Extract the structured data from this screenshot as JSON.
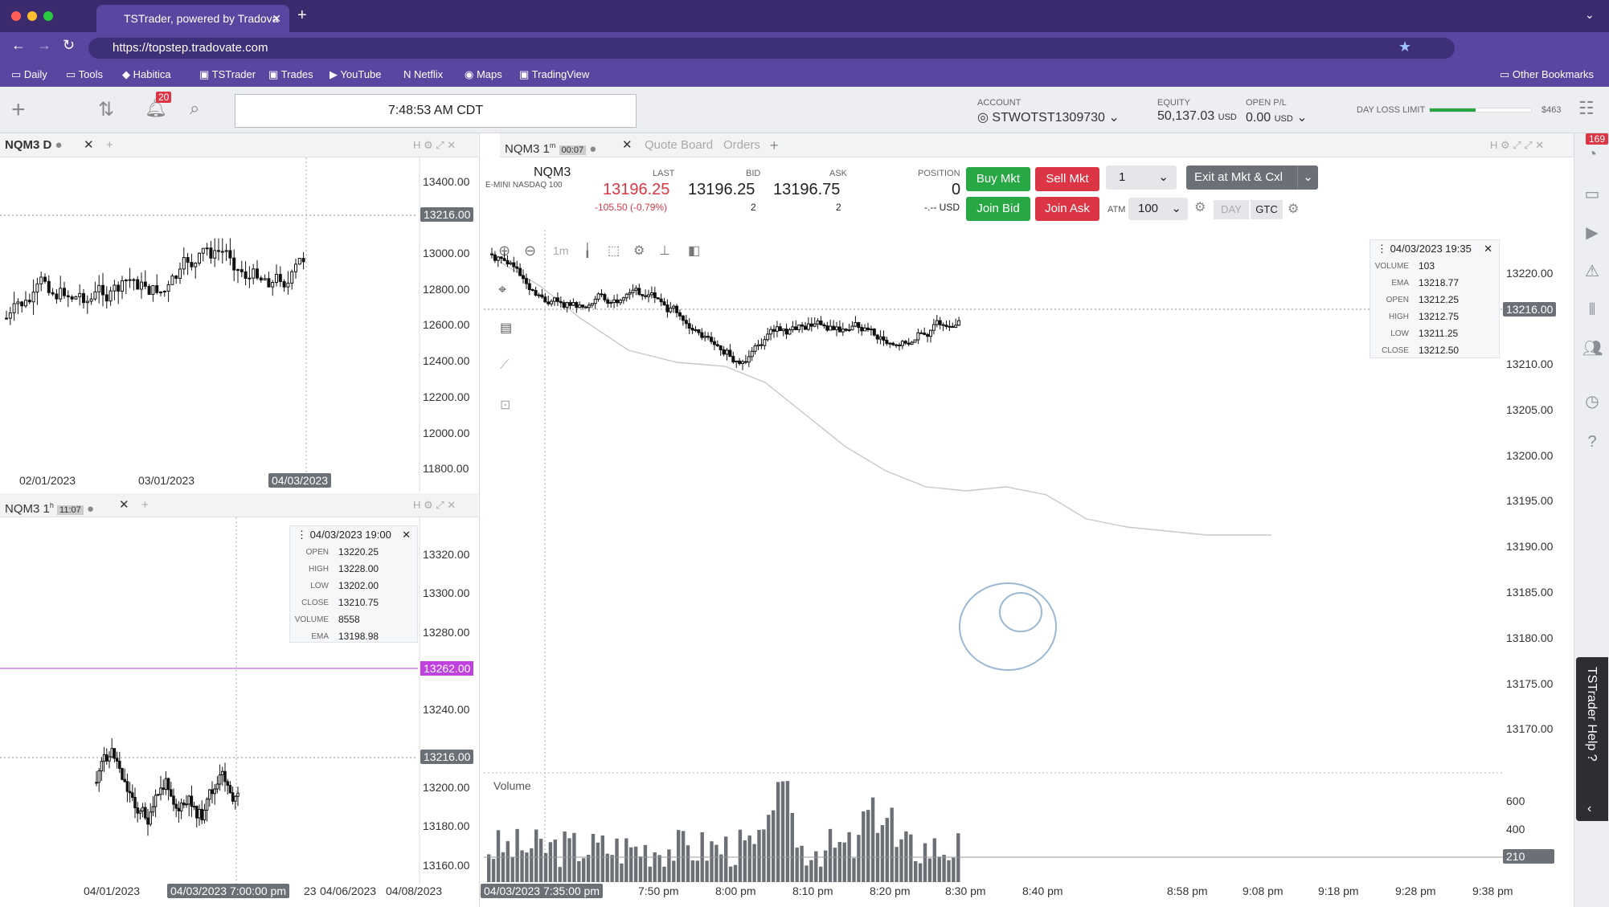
{
  "browser": {
    "tab_title": "TSTrader, powered by Tradova",
    "url": "https://topstep.tradovate.com",
    "bookmarks": [
      "Daily",
      "Tools",
      "Habitica",
      "TSTrader",
      "Trades",
      "YouTube",
      "Netflix",
      "Maps",
      "TradingView"
    ],
    "other_bookmarks": "Other Bookmarks"
  },
  "toolbar": {
    "notifications": "20",
    "clock": "7:48:53 AM CDT",
    "account_label": "ACCOUNT",
    "account": "STWOTST1309730",
    "equity_label": "EQUITY",
    "equity": "50,137.03",
    "equity_unit": "USD",
    "openpl_label": "OPEN P/L",
    "openpl": "0.00",
    "openpl_unit": "USD",
    "dayloss_label": "DAY LOSS LIMIT",
    "dayloss_value": "$463",
    "dayloss_fraction": 0.45
  },
  "daily_panel": {
    "title": "NQM3 D",
    "prices": [
      "13400.00",
      "13000.00",
      "12800.00",
      "12600.00",
      "12400.00",
      "12200.00",
      "12000.00",
      "11800.00"
    ],
    "current_price": "13216.00",
    "dates": [
      "02/01/2023",
      "03/01/2023"
    ],
    "cursor_date": "04/03/2023"
  },
  "hourly_panel": {
    "title": "NQM3 1",
    "title_sup": "h",
    "timer": "11:07",
    "prices": [
      "13320.00",
      "13300.00",
      "13280.00",
      "13240.00",
      "13220.00",
      "13200.00",
      "13180.00",
      "13160.00"
    ],
    "marker_price": "13262.00",
    "current_price": "13216.00",
    "dates": [
      "04/01/2023",
      "23",
      "04/06/2023",
      "04/08/2023"
    ],
    "cursor_date": "04/03/2023 7:00:00 pm",
    "tooltip": {
      "date": "04/03/2023 19:00",
      "open_label": "OPEN",
      "open": "13220.25",
      "high_label": "HIGH",
      "high": "13228.00",
      "low_label": "LOW",
      "low": "13202.00",
      "close_label": "CLOSE",
      "close": "13210.75",
      "volume_label": "VOLUME",
      "volume": "8558",
      "ema_label": "EMA",
      "ema": "13198.98"
    }
  },
  "main_panel": {
    "title": "NQM3 1",
    "title_sup": "m",
    "timer": "00:07",
    "tabs": [
      "Quote Board",
      "Orders"
    ],
    "symbol": "NQM3",
    "symbol_desc": "E-MINI NASDAQ 100",
    "last_label": "LAST",
    "last": "13196.25",
    "change": "-105.50 (-0.79%)",
    "bid_label": "BID",
    "bid": "13196.25",
    "bid_size": "2",
    "ask_label": "ASK",
    "ask": "13196.75",
    "ask_size": "2",
    "position_label": "POSITION",
    "position": "0",
    "position_usd": "-.-- USD",
    "buy_mkt": "Buy Mkt",
    "sell_mkt": "Sell Mkt",
    "join_bid": "Join Bid",
    "join_ask": "Join Ask",
    "qty": "1",
    "atm_label": "ATM",
    "atm": "100",
    "exit": "Exit at Mkt & Cxl",
    "day": "DAY",
    "gtc": "GTC",
    "interval": "1m",
    "prices": [
      "13220.00",
      "13215.00",
      "13210.00",
      "13205.00",
      "13200.00",
      "13195.00",
      "13190.00",
      "13185.00",
      "13180.00",
      "13175.00",
      "13170.00"
    ],
    "current_price": "13216.00",
    "volume_label": "Volume",
    "volume_axis": [
      "600",
      "400",
      "210"
    ],
    "times": [
      "7:50 pm",
      "8:00 pm",
      "8:10 pm",
      "8:20 pm",
      "8:30 pm",
      "8:40 pm",
      "8:58 pm",
      "9:08 pm",
      "9:18 pm",
      "9:28 pm",
      "9:38 pm"
    ],
    "cursor_time": "04/03/2023 7:35:00 pm",
    "tooltip": {
      "date": "04/03/2023 19:35",
      "volume_label": "VOLUME",
      "volume": "103",
      "ema_label": "EMA",
      "ema": "13218.77",
      "open_label": "OPEN",
      "open": "13212.25",
      "high_label": "HIGH",
      "high": "13212.75",
      "low_label": "LOW",
      "low": "13211.25",
      "close_label": "CLOSE",
      "close": "13212.50"
    }
  },
  "sidebar": {
    "badge": "169",
    "help": "TSTrader Help ?"
  },
  "colors": {
    "brand": "#5a46a0",
    "buy": "#28a745",
    "sell": "#dc3545",
    "marker": "#c040e0"
  }
}
